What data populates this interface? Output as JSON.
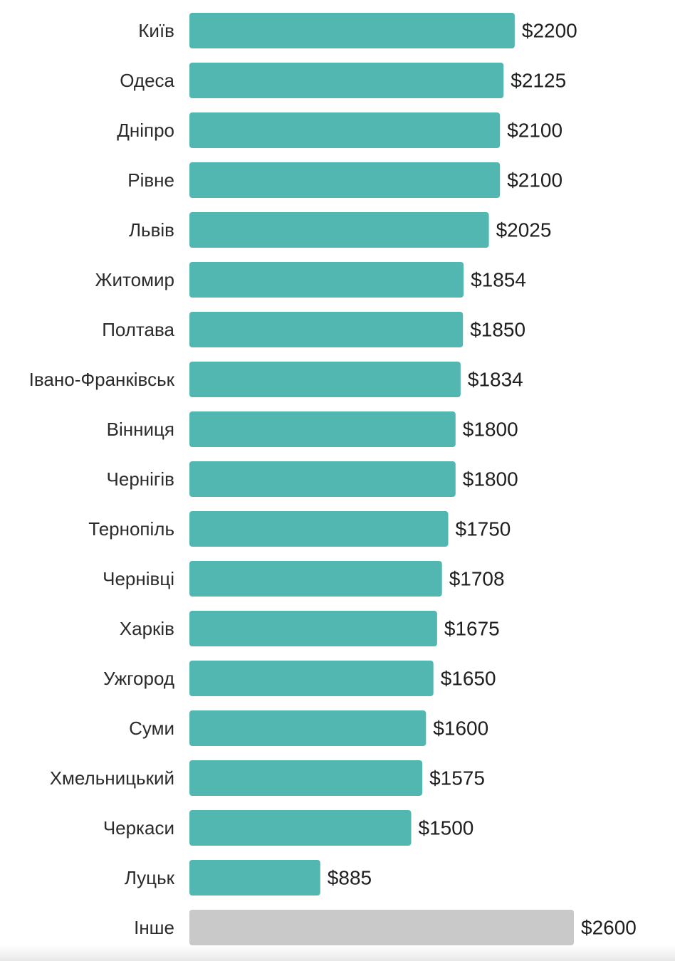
{
  "chart_data": {
    "type": "bar",
    "orientation": "horizontal",
    "categories": [
      "Київ",
      "Одеса",
      "Дніпро",
      "Рівне",
      "Львів",
      "Житомир",
      "Полтава",
      "Івано-Франківськ",
      "Вінниця",
      "Чернігів",
      "Тернопіль",
      "Чернівці",
      "Харків",
      "Ужгород",
      "Суми",
      "Хмельницький",
      "Черкаси",
      "Луцьк",
      "Інше"
    ],
    "values": [
      2200,
      2125,
      2100,
      2100,
      2025,
      1854,
      1850,
      1834,
      1800,
      1800,
      1750,
      1708,
      1675,
      1650,
      1600,
      1575,
      1500,
      885,
      2600
    ],
    "value_labels": [
      "$2200",
      "$2125",
      "$2100",
      "$2100",
      "$2025",
      "$1854",
      "$1850",
      "$1834",
      "$1800",
      "$1800",
      "$1750",
      "$1708",
      "$1675",
      "$1650",
      "$1600",
      "$1575",
      "$1500",
      "$885",
      "$2600"
    ],
    "bar_colors": [
      "#52b7b0",
      "#52b7b0",
      "#52b7b0",
      "#52b7b0",
      "#52b7b0",
      "#52b7b0",
      "#52b7b0",
      "#52b7b0",
      "#52b7b0",
      "#52b7b0",
      "#52b7b0",
      "#52b7b0",
      "#52b7b0",
      "#52b7b0",
      "#52b7b0",
      "#52b7b0",
      "#52b7b0",
      "#52b7b0",
      "#c9c9c9"
    ],
    "xlim": [
      0,
      2600
    ],
    "title": "",
    "xlabel": "",
    "ylabel": "",
    "grid": false,
    "legend": "none"
  }
}
